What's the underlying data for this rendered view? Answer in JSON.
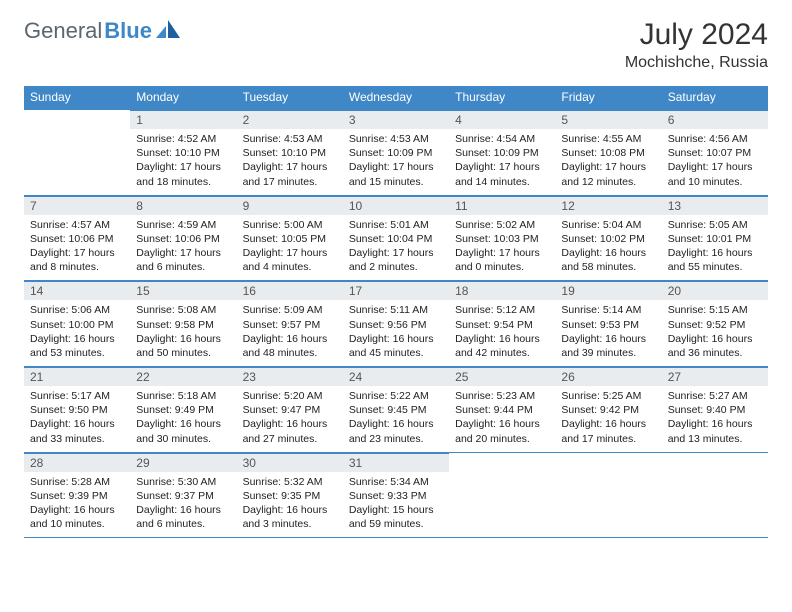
{
  "brand": {
    "part1": "General",
    "part2": "Blue"
  },
  "title": "July 2024",
  "location": "Mochishche, Russia",
  "columns": [
    "Sunday",
    "Monday",
    "Tuesday",
    "Wednesday",
    "Thursday",
    "Friday",
    "Saturday"
  ],
  "colors": {
    "header_bg": "#3f87c7",
    "header_text": "#ffffff",
    "daynum_bg": "#e9ecef",
    "border": "#3f87c7",
    "brand_gray": "#5a6670",
    "brand_blue": "#3f87c7",
    "body_text": "#222222"
  },
  "first_weekday_offset": 1,
  "days": [
    {
      "n": 1,
      "sunrise": "4:52 AM",
      "sunset": "10:10 PM",
      "daylight": "17 hours and 18 minutes."
    },
    {
      "n": 2,
      "sunrise": "4:53 AM",
      "sunset": "10:10 PM",
      "daylight": "17 hours and 17 minutes."
    },
    {
      "n": 3,
      "sunrise": "4:53 AM",
      "sunset": "10:09 PM",
      "daylight": "17 hours and 15 minutes."
    },
    {
      "n": 4,
      "sunrise": "4:54 AM",
      "sunset": "10:09 PM",
      "daylight": "17 hours and 14 minutes."
    },
    {
      "n": 5,
      "sunrise": "4:55 AM",
      "sunset": "10:08 PM",
      "daylight": "17 hours and 12 minutes."
    },
    {
      "n": 6,
      "sunrise": "4:56 AM",
      "sunset": "10:07 PM",
      "daylight": "17 hours and 10 minutes."
    },
    {
      "n": 7,
      "sunrise": "4:57 AM",
      "sunset": "10:06 PM",
      "daylight": "17 hours and 8 minutes."
    },
    {
      "n": 8,
      "sunrise": "4:59 AM",
      "sunset": "10:06 PM",
      "daylight": "17 hours and 6 minutes."
    },
    {
      "n": 9,
      "sunrise": "5:00 AM",
      "sunset": "10:05 PM",
      "daylight": "17 hours and 4 minutes."
    },
    {
      "n": 10,
      "sunrise": "5:01 AM",
      "sunset": "10:04 PM",
      "daylight": "17 hours and 2 minutes."
    },
    {
      "n": 11,
      "sunrise": "5:02 AM",
      "sunset": "10:03 PM",
      "daylight": "17 hours and 0 minutes."
    },
    {
      "n": 12,
      "sunrise": "5:04 AM",
      "sunset": "10:02 PM",
      "daylight": "16 hours and 58 minutes."
    },
    {
      "n": 13,
      "sunrise": "5:05 AM",
      "sunset": "10:01 PM",
      "daylight": "16 hours and 55 minutes."
    },
    {
      "n": 14,
      "sunrise": "5:06 AM",
      "sunset": "10:00 PM",
      "daylight": "16 hours and 53 minutes."
    },
    {
      "n": 15,
      "sunrise": "5:08 AM",
      "sunset": "9:58 PM",
      "daylight": "16 hours and 50 minutes."
    },
    {
      "n": 16,
      "sunrise": "5:09 AM",
      "sunset": "9:57 PM",
      "daylight": "16 hours and 48 minutes."
    },
    {
      "n": 17,
      "sunrise": "5:11 AM",
      "sunset": "9:56 PM",
      "daylight": "16 hours and 45 minutes."
    },
    {
      "n": 18,
      "sunrise": "5:12 AM",
      "sunset": "9:54 PM",
      "daylight": "16 hours and 42 minutes."
    },
    {
      "n": 19,
      "sunrise": "5:14 AM",
      "sunset": "9:53 PM",
      "daylight": "16 hours and 39 minutes."
    },
    {
      "n": 20,
      "sunrise": "5:15 AM",
      "sunset": "9:52 PM",
      "daylight": "16 hours and 36 minutes."
    },
    {
      "n": 21,
      "sunrise": "5:17 AM",
      "sunset": "9:50 PM",
      "daylight": "16 hours and 33 minutes."
    },
    {
      "n": 22,
      "sunrise": "5:18 AM",
      "sunset": "9:49 PM",
      "daylight": "16 hours and 30 minutes."
    },
    {
      "n": 23,
      "sunrise": "5:20 AM",
      "sunset": "9:47 PM",
      "daylight": "16 hours and 27 minutes."
    },
    {
      "n": 24,
      "sunrise": "5:22 AM",
      "sunset": "9:45 PM",
      "daylight": "16 hours and 23 minutes."
    },
    {
      "n": 25,
      "sunrise": "5:23 AM",
      "sunset": "9:44 PM",
      "daylight": "16 hours and 20 minutes."
    },
    {
      "n": 26,
      "sunrise": "5:25 AM",
      "sunset": "9:42 PM",
      "daylight": "16 hours and 17 minutes."
    },
    {
      "n": 27,
      "sunrise": "5:27 AM",
      "sunset": "9:40 PM",
      "daylight": "16 hours and 13 minutes."
    },
    {
      "n": 28,
      "sunrise": "5:28 AM",
      "sunset": "9:39 PM",
      "daylight": "16 hours and 10 minutes."
    },
    {
      "n": 29,
      "sunrise": "5:30 AM",
      "sunset": "9:37 PM",
      "daylight": "16 hours and 6 minutes."
    },
    {
      "n": 30,
      "sunrise": "5:32 AM",
      "sunset": "9:35 PM",
      "daylight": "16 hours and 3 minutes."
    },
    {
      "n": 31,
      "sunrise": "5:34 AM",
      "sunset": "9:33 PM",
      "daylight": "15 hours and 59 minutes."
    }
  ],
  "labels": {
    "sunrise": "Sunrise:",
    "sunset": "Sunset:",
    "daylight": "Daylight:"
  }
}
